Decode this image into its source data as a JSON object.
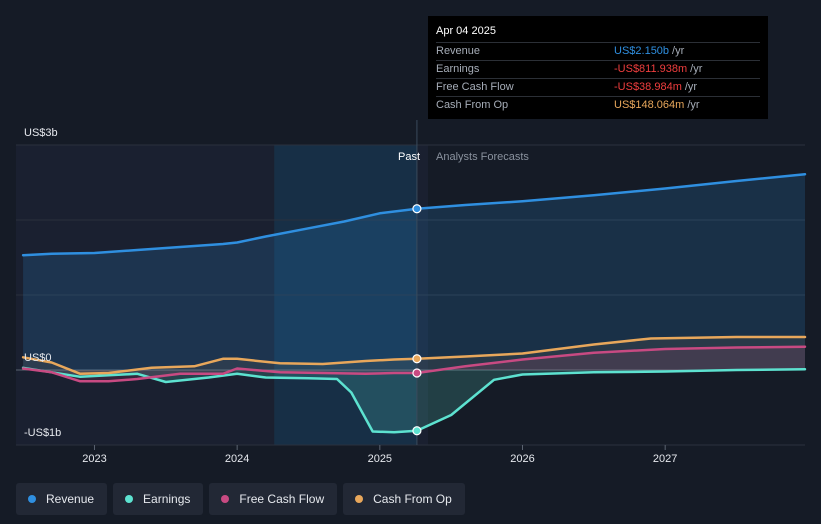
{
  "tooltip": {
    "date": "Apr 04 2025",
    "rows": [
      {
        "label": "Revenue",
        "value": "US$2.150b",
        "unit": "/yr",
        "color": "#2f8fe0"
      },
      {
        "label": "Earnings",
        "value": "-US$811.938m",
        "unit": "/yr",
        "color": "#f03e3e"
      },
      {
        "label": "Free Cash Flow",
        "value": "-US$38.984m",
        "unit": "/yr",
        "color": "#f03e3e"
      },
      {
        "label": "Cash From Op",
        "value": "US$148.064m",
        "unit": "/yr",
        "color": "#e8a75b"
      }
    ]
  },
  "chart_data": {
    "type": "line",
    "y_axis_labels": [
      "US$3b",
      "US$0",
      "-US$1b"
    ],
    "ylim": [
      -1,
      3
    ],
    "xlim": [
      2022.45,
      2027.98
    ],
    "x_ticks": [
      2023,
      2024,
      2025,
      2026,
      2027
    ],
    "x_tick_labels": [
      "2023",
      "2024",
      "2025",
      "2026",
      "2027"
    ],
    "past_label": "Past",
    "forecast_label": "Analysts Forecasts",
    "divider_x": 2025.26,
    "highlight_start_x": 2024.26,
    "grid": true,
    "legend_position": "bottom-left",
    "series": [
      {
        "name": "Revenue",
        "color": "#2f8fe0",
        "points": [
          [
            2022.5,
            1.53
          ],
          [
            2022.7,
            1.55
          ],
          [
            2023.0,
            1.56
          ],
          [
            2023.3,
            1.6
          ],
          [
            2023.6,
            1.64
          ],
          [
            2023.9,
            1.68
          ],
          [
            2024.0,
            1.7
          ],
          [
            2024.2,
            1.78
          ],
          [
            2024.5,
            1.89
          ],
          [
            2024.75,
            1.98
          ],
          [
            2025.0,
            2.09
          ],
          [
            2025.26,
            2.15
          ],
          [
            2025.6,
            2.2
          ],
          [
            2026.0,
            2.25
          ],
          [
            2026.5,
            2.33
          ],
          [
            2027.0,
            2.42
          ],
          [
            2027.5,
            2.52
          ],
          [
            2027.98,
            2.61
          ]
        ]
      },
      {
        "name": "Earnings",
        "color": "#5de2d0",
        "points": [
          [
            2022.5,
            0.03
          ],
          [
            2022.7,
            -0.03
          ],
          [
            2022.9,
            -0.09
          ],
          [
            2023.1,
            -0.07
          ],
          [
            2023.3,
            -0.05
          ],
          [
            2023.5,
            -0.16
          ],
          [
            2023.8,
            -0.1
          ],
          [
            2024.0,
            -0.05
          ],
          [
            2024.2,
            -0.1
          ],
          [
            2024.5,
            -0.11
          ],
          [
            2024.7,
            -0.12
          ],
          [
            2024.8,
            -0.3
          ],
          [
            2024.95,
            -0.82
          ],
          [
            2025.1,
            -0.83
          ],
          [
            2025.26,
            -0.81
          ],
          [
            2025.5,
            -0.6
          ],
          [
            2025.8,
            -0.13
          ],
          [
            2026.0,
            -0.06
          ],
          [
            2026.5,
            -0.03
          ],
          [
            2027.0,
            -0.02
          ],
          [
            2027.5,
            0.0
          ],
          [
            2027.98,
            0.01
          ]
        ]
      },
      {
        "name": "Free Cash Flow",
        "color": "#c84a82",
        "points": [
          [
            2022.5,
            0.02
          ],
          [
            2022.7,
            -0.03
          ],
          [
            2022.9,
            -0.15
          ],
          [
            2023.1,
            -0.15
          ],
          [
            2023.3,
            -0.12
          ],
          [
            2023.6,
            -0.05
          ],
          [
            2023.9,
            -0.05
          ],
          [
            2024.0,
            0.02
          ],
          [
            2024.3,
            -0.03
          ],
          [
            2024.6,
            -0.04
          ],
          [
            2024.9,
            -0.05
          ],
          [
            2025.1,
            -0.04
          ],
          [
            2025.26,
            -0.04
          ],
          [
            2025.6,
            0.05
          ],
          [
            2026.0,
            0.14
          ],
          [
            2026.5,
            0.23
          ],
          [
            2027.0,
            0.28
          ],
          [
            2027.5,
            0.3
          ],
          [
            2027.98,
            0.31
          ]
        ]
      },
      {
        "name": "Cash From Op",
        "color": "#e8a75b",
        "points": [
          [
            2022.5,
            0.17
          ],
          [
            2022.7,
            0.1
          ],
          [
            2022.9,
            -0.05
          ],
          [
            2023.1,
            -0.04
          ],
          [
            2023.4,
            0.03
          ],
          [
            2023.7,
            0.05
          ],
          [
            2023.9,
            0.15
          ],
          [
            2024.0,
            0.15
          ],
          [
            2024.3,
            0.09
          ],
          [
            2024.6,
            0.08
          ],
          [
            2024.9,
            0.12
          ],
          [
            2025.1,
            0.14
          ],
          [
            2025.26,
            0.15
          ],
          [
            2025.6,
            0.18
          ],
          [
            2026.0,
            0.22
          ],
          [
            2026.5,
            0.34
          ],
          [
            2026.9,
            0.42
          ],
          [
            2027.5,
            0.44
          ],
          [
            2027.98,
            0.44
          ]
        ]
      }
    ],
    "highlighted_point_x": 2025.26
  }
}
